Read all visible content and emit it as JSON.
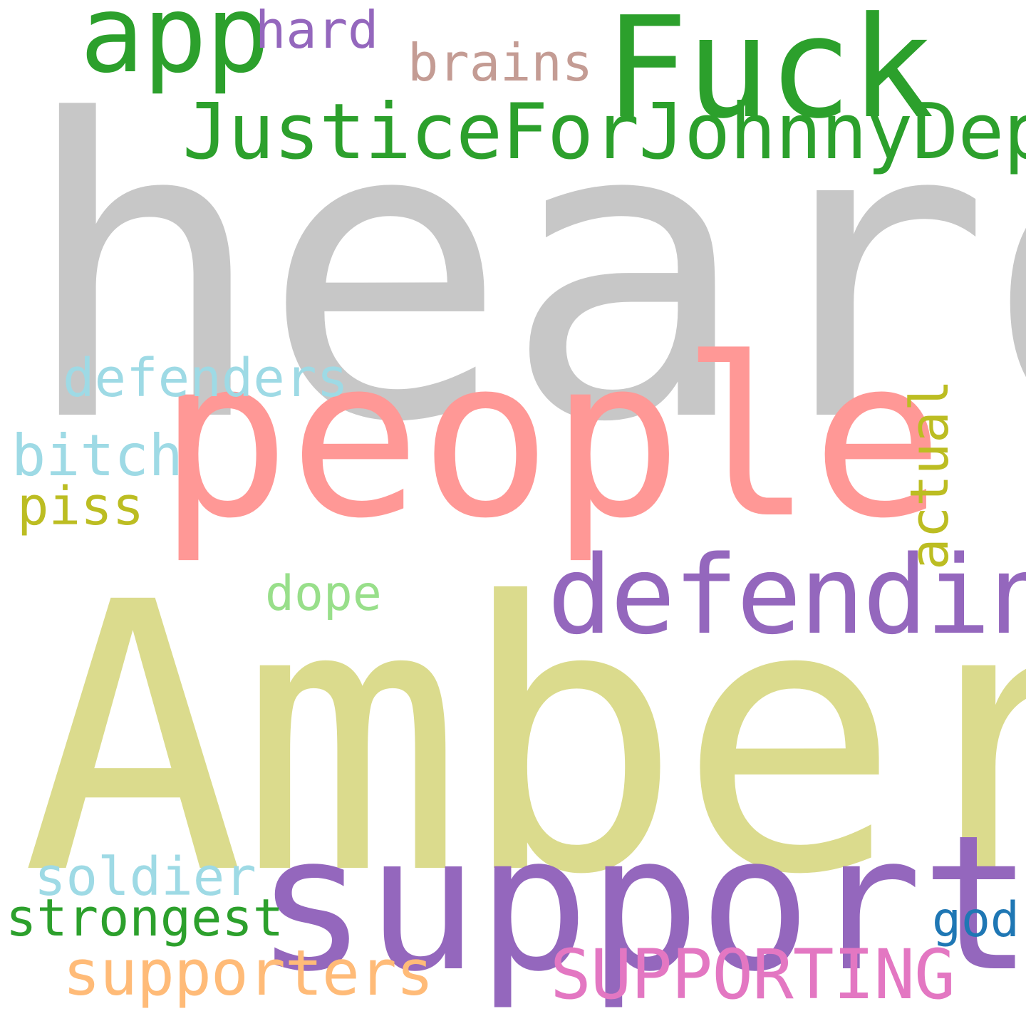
{
  "words": [
    {
      "text": "heard",
      "color": "#c7c7c7"
    },
    {
      "text": "Amber",
      "color": "#dbdb8d"
    },
    {
      "text": "people",
      "color": "#ff9896"
    },
    {
      "text": "support",
      "color": "#9467bd"
    },
    {
      "text": "Fuck",
      "color": "#2ca02c"
    },
    {
      "text": "app",
      "color": "#2ca02c"
    },
    {
      "text": "JusticeForJohnnyDepp",
      "color": "#2ca02c"
    },
    {
      "text": "defending",
      "color": "#9467bd"
    },
    {
      "text": "SUPPORTING",
      "color": "#e377c2"
    },
    {
      "text": "supporters",
      "color": "#ffbb78"
    },
    {
      "text": "hard",
      "color": "#9467bd"
    },
    {
      "text": "brains",
      "color": "#c49c94"
    },
    {
      "text": "defenders",
      "color": "#9edae5"
    },
    {
      "text": "bitch",
      "color": "#9edae5"
    },
    {
      "text": "piss",
      "color": "#bcbd22"
    },
    {
      "text": "actual",
      "color": "#bcbd22"
    },
    {
      "text": "dope",
      "color": "#98df8a"
    },
    {
      "text": "soldier",
      "color": "#9edae5"
    },
    {
      "text": "strongest",
      "color": "#2ca02c"
    },
    {
      "text": "god",
      "color": "#1f77b4"
    }
  ]
}
